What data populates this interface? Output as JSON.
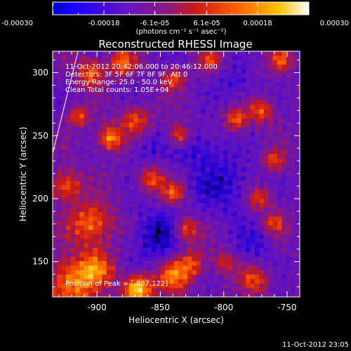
{
  "chart_data": {
    "type": "heatmap",
    "title": "Reconstructed RHESSI Image",
    "xlabel": "Heliocentric X (arcsec)",
    "ylabel": "Heliocentric Y (arcsec)",
    "xlim": [
      -935,
      -740
    ],
    "ylim": [
      122,
      317
    ],
    "x_ticks": [
      -900,
      -850,
      -800,
      -750
    ],
    "y_ticks": [
      150,
      200,
      250,
      300
    ],
    "colorbar": {
      "min": -0.0003,
      "max": 0.0003,
      "tick_values": [
        -0.0003,
        -0.00018,
        -6.1e-05,
        6.1e-05,
        0.00018,
        0.0003
      ],
      "tick_labels": [
        "-0.00030",
        "-0.00018",
        "-6.1e-05",
        "6.1e-05",
        "0.00018",
        "0.00030"
      ],
      "units_label": "(photons cm⁻² s⁻¹ asec⁻²)"
    },
    "colormap": [
      "#000000",
      "#1a00d8",
      "#5a10c8",
      "#7a1898",
      "#c81818",
      "#ff5a00",
      "#ffbf00",
      "#ffffff"
    ],
    "annotations": [
      "11-Oct-2012 20:42:06.000 to 20:46:12.000",
      "Detectors: 3F 5F 6F 7F 8F 9F, Att 0",
      "Energy Range: 25.0 - 50.0 keV",
      "Clean    Total counts: 1.05E+04"
    ],
    "peak_label": "Position of Peak = [-867,122]",
    "peak_position": [
      -867,
      122
    ],
    "min_marker": [
      -853,
      170
    ],
    "limb_line": [
      [
        -935,
        236
      ],
      [
        -915,
        317
      ]
    ],
    "hot_spots": [
      {
        "x": -920,
        "y": 133,
        "amp": 1.8,
        "s": 14
      },
      {
        "x": -900,
        "y": 145,
        "amp": 1.4,
        "s": 10
      },
      {
        "x": -868,
        "y": 128,
        "amp": 2.6,
        "s": 8
      },
      {
        "x": -840,
        "y": 138,
        "amp": 1.6,
        "s": 9
      },
      {
        "x": -905,
        "y": 180,
        "amp": 1.7,
        "s": 12
      },
      {
        "x": -925,
        "y": 210,
        "amp": 1.5,
        "s": 9
      },
      {
        "x": -890,
        "y": 248,
        "amp": 1.9,
        "s": 7
      },
      {
        "x": -870,
        "y": 262,
        "amp": 1.4,
        "s": 8
      },
      {
        "x": -915,
        "y": 265,
        "amp": 1.3,
        "s": 6
      },
      {
        "x": -905,
        "y": 300,
        "amp": 1.5,
        "s": 8
      },
      {
        "x": -880,
        "y": 308,
        "amp": 1.6,
        "s": 7
      },
      {
        "x": -840,
        "y": 295,
        "amp": 1.4,
        "s": 6
      },
      {
        "x": -835,
        "y": 250,
        "amp": 1.6,
        "s": 6
      },
      {
        "x": -858,
        "y": 215,
        "amp": 1.5,
        "s": 7
      },
      {
        "x": -840,
        "y": 205,
        "amp": 1.3,
        "s": 6
      },
      {
        "x": -830,
        "y": 175,
        "amp": 1.5,
        "s": 7
      },
      {
        "x": -825,
        "y": 148,
        "amp": 1.4,
        "s": 8
      },
      {
        "x": -790,
        "y": 262,
        "amp": 1.5,
        "s": 6
      },
      {
        "x": -770,
        "y": 270,
        "amp": 1.4,
        "s": 7
      },
      {
        "x": -760,
        "y": 230,
        "amp": 1.2,
        "s": 6
      },
      {
        "x": -772,
        "y": 200,
        "amp": 1.3,
        "s": 7
      },
      {
        "x": -760,
        "y": 180,
        "amp": 1.2,
        "s": 6
      },
      {
        "x": -775,
        "y": 135,
        "amp": 1.3,
        "s": 8
      },
      {
        "x": -755,
        "y": 310,
        "amp": 1.4,
        "s": 6
      },
      {
        "x": -810,
        "y": 310,
        "amp": 1.2,
        "s": 6
      },
      {
        "x": -800,
        "y": 150,
        "amp": 1.0,
        "s": 6
      }
    ],
    "cold_spots": [
      {
        "x": -853,
        "y": 170,
        "amp": 2.0,
        "s": 14
      },
      {
        "x": -800,
        "y": 210,
        "amp": 1.6,
        "s": 16
      },
      {
        "x": -820,
        "y": 240,
        "amp": 1.4,
        "s": 12
      },
      {
        "x": -775,
        "y": 165,
        "amp": 1.2,
        "s": 10
      },
      {
        "x": -860,
        "y": 240,
        "amp": 1.0,
        "s": 10
      },
      {
        "x": -790,
        "y": 290,
        "amp": 1.1,
        "s": 10
      }
    ]
  },
  "footer": {
    "timestamp": "11-Oct-2012 23:05"
  }
}
